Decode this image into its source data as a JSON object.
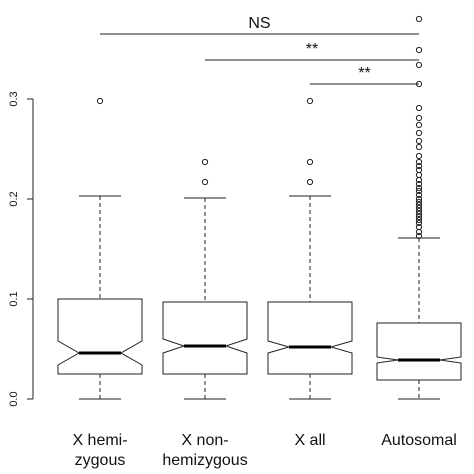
{
  "chart_data": {
    "type": "boxplot",
    "notched": true,
    "ylim": [
      0,
      0.38
    ],
    "yticks": [
      {
        "value": 0.0,
        "label": "0.0"
      },
      {
        "value": 0.1,
        "label": "0.1"
      },
      {
        "value": 0.2,
        "label": "0.2"
      },
      {
        "value": 0.3,
        "label": "0.3"
      }
    ],
    "categories": [
      {
        "lines": [
          "X hemi-",
          "zygous"
        ]
      },
      {
        "lines": [
          "X non-",
          "hemizygous"
        ]
      },
      {
        "lines": [
          "X all"
        ]
      },
      {
        "lines": [
          "Autosomal"
        ]
      }
    ],
    "boxes": [
      {
        "whisker_low": 0.0,
        "q1": 0.025,
        "median": 0.046,
        "q3": 0.1,
        "whisker_high": 0.203,
        "notch_low": 0.034,
        "notch_high": 0.058,
        "outliers": [
          0.298
        ]
      },
      {
        "whisker_low": 0.0,
        "q1": 0.025,
        "median": 0.053,
        "q3": 0.097,
        "whisker_high": 0.201,
        "notch_low": 0.046,
        "notch_high": 0.06,
        "outliers": [
          0.217,
          0.237
        ]
      },
      {
        "whisker_low": 0.0,
        "q1": 0.025,
        "median": 0.052,
        "q3": 0.097,
        "whisker_high": 0.203,
        "notch_low": 0.046,
        "notch_high": 0.058,
        "outliers": [
          0.217,
          0.237,
          0.298
        ]
      },
      {
        "whisker_low": 0.0,
        "q1": 0.019,
        "median": 0.039,
        "q3": 0.076,
        "whisker_high": 0.161,
        "notch_low": 0.036,
        "notch_high": 0.042,
        "outliers": [
          0.163,
          0.167,
          0.172,
          0.176,
          0.179,
          0.182,
          0.185,
          0.188,
          0.191,
          0.194,
          0.197,
          0.2,
          0.204,
          0.208,
          0.211,
          0.215,
          0.219,
          0.224,
          0.229,
          0.233,
          0.237,
          0.243,
          0.252,
          0.258,
          0.266,
          0.274,
          0.281,
          0.291,
          0.315,
          0.334,
          0.349,
          0.38
        ]
      }
    ],
    "significance": [
      {
        "from": 0,
        "to": 3,
        "y": 0.365,
        "label": "NS"
      },
      {
        "from": 1,
        "to": 3,
        "y": 0.339,
        "label": "**"
      },
      {
        "from": 2,
        "to": 3,
        "y": 0.315,
        "label": "**"
      }
    ]
  }
}
